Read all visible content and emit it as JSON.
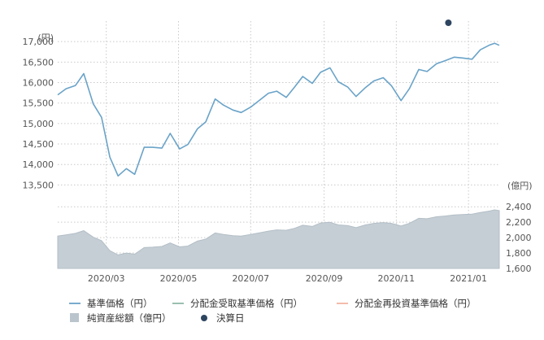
{
  "chart_data": {
    "type": "line",
    "upper": {
      "unit_label": "(円)",
      "ylim": [
        13250,
        17500
      ],
      "yticks": [
        13500,
        14000,
        14500,
        15000,
        15500,
        16000,
        16500,
        17000
      ],
      "ytick_labels": [
        "13,500",
        "14,000",
        "14,500",
        "15,000",
        "15,500",
        "16,000",
        "16,500",
        "17,000"
      ]
    },
    "lower": {
      "unit_label": "(億円)",
      "ylim": [
        1600,
        2550
      ],
      "yticks": [
        1600,
        1800,
        2000,
        2200,
        2400
      ],
      "ytick_labels": [
        "1,600",
        "1,800",
        "2,000",
        "2,200",
        "2,400"
      ]
    },
    "x_start": "2020-01-20",
    "x_end": "2021-01-27",
    "xticks": [
      "2020-03-01",
      "2020-05-01",
      "2020-07-01",
      "2020-09-01",
      "2020-11-01",
      "2021-01-01"
    ],
    "xtick_labels": [
      "2020/03",
      "2020/05",
      "2020/07",
      "2020/09",
      "2020/11",
      "2021/01"
    ],
    "nav_series": {
      "name": "基準価格（円）",
      "color": "#6aa3c8",
      "points": [
        [
          "2020-01-20",
          15700
        ],
        [
          "2020-01-27",
          15850
        ],
        [
          "2020-02-04",
          15930
        ],
        [
          "2020-02-11",
          16220
        ],
        [
          "2020-02-19",
          15480
        ],
        [
          "2020-02-26",
          15150
        ],
        [
          "2020-03-04",
          14180
        ],
        [
          "2020-03-11",
          13720
        ],
        [
          "2020-03-18",
          13900
        ],
        [
          "2020-03-25",
          13760
        ],
        [
          "2020-04-02",
          14420
        ],
        [
          "2020-04-09",
          14420
        ],
        [
          "2020-04-17",
          14400
        ],
        [
          "2020-04-24",
          14760
        ],
        [
          "2020-05-02",
          14380
        ],
        [
          "2020-05-09",
          14490
        ],
        [
          "2020-05-17",
          14870
        ],
        [
          "2020-05-24",
          15040
        ],
        [
          "2020-06-01",
          15600
        ],
        [
          "2020-06-08",
          15450
        ],
        [
          "2020-06-16",
          15330
        ],
        [
          "2020-06-23",
          15270
        ],
        [
          "2020-07-01",
          15400
        ],
        [
          "2020-07-08",
          15560
        ],
        [
          "2020-07-16",
          15740
        ],
        [
          "2020-07-23",
          15790
        ],
        [
          "2020-07-31",
          15640
        ],
        [
          "2020-08-07",
          15890
        ],
        [
          "2020-08-14",
          16150
        ],
        [
          "2020-08-22",
          15980
        ],
        [
          "2020-08-29",
          16250
        ],
        [
          "2020-09-06",
          16360
        ],
        [
          "2020-09-13",
          16020
        ],
        [
          "2020-09-21",
          15890
        ],
        [
          "2020-09-28",
          15660
        ],
        [
          "2020-10-06",
          15880
        ],
        [
          "2020-10-13",
          16040
        ],
        [
          "2020-10-21",
          16120
        ],
        [
          "2020-10-28",
          15920
        ],
        [
          "2020-11-05",
          15560
        ],
        [
          "2020-11-12",
          15850
        ],
        [
          "2020-11-20",
          16320
        ],
        [
          "2020-11-27",
          16270
        ],
        [
          "2020-12-05",
          16460
        ],
        [
          "2020-12-12",
          16530
        ],
        [
          "2020-12-20",
          16620
        ],
        [
          "2020-12-27",
          16600
        ],
        [
          "2021-01-04",
          16570
        ],
        [
          "2021-01-11",
          16800
        ],
        [
          "2021-01-19",
          16920
        ],
        [
          "2021-01-23",
          16960
        ],
        [
          "2021-01-27",
          16910
        ]
      ]
    },
    "net_assets_series": {
      "name": "純資産総額（億円）",
      "color": "#c5ced5",
      "points": [
        [
          "2020-01-20",
          2020
        ],
        [
          "2020-01-27",
          2035
        ],
        [
          "2020-02-04",
          2055
        ],
        [
          "2020-02-11",
          2090
        ],
        [
          "2020-02-19",
          2005
        ],
        [
          "2020-02-26",
          1960
        ],
        [
          "2020-03-04",
          1830
        ],
        [
          "2020-03-11",
          1775
        ],
        [
          "2020-03-18",
          1800
        ],
        [
          "2020-03-25",
          1785
        ],
        [
          "2020-04-02",
          1870
        ],
        [
          "2020-04-09",
          1875
        ],
        [
          "2020-04-17",
          1885
        ],
        [
          "2020-04-24",
          1930
        ],
        [
          "2020-05-02",
          1880
        ],
        [
          "2020-05-09",
          1890
        ],
        [
          "2020-05-17",
          1955
        ],
        [
          "2020-05-24",
          1980
        ],
        [
          "2020-06-01",
          2060
        ],
        [
          "2020-06-08",
          2040
        ],
        [
          "2020-06-16",
          2025
        ],
        [
          "2020-06-23",
          2020
        ],
        [
          "2020-07-01",
          2040
        ],
        [
          "2020-07-08",
          2060
        ],
        [
          "2020-07-16",
          2085
        ],
        [
          "2020-07-23",
          2100
        ],
        [
          "2020-07-31",
          2095
        ],
        [
          "2020-08-07",
          2120
        ],
        [
          "2020-08-14",
          2160
        ],
        [
          "2020-08-22",
          2145
        ],
        [
          "2020-08-29",
          2190
        ],
        [
          "2020-09-06",
          2200
        ],
        [
          "2020-09-13",
          2165
        ],
        [
          "2020-09-21",
          2155
        ],
        [
          "2020-09-28",
          2130
        ],
        [
          "2020-10-06",
          2165
        ],
        [
          "2020-10-13",
          2185
        ],
        [
          "2020-10-21",
          2195
        ],
        [
          "2020-10-28",
          2185
        ],
        [
          "2020-11-05",
          2150
        ],
        [
          "2020-11-12",
          2185
        ],
        [
          "2020-11-20",
          2250
        ],
        [
          "2020-11-27",
          2245
        ],
        [
          "2020-12-05",
          2270
        ],
        [
          "2020-12-12",
          2280
        ],
        [
          "2020-12-20",
          2295
        ],
        [
          "2020-12-27",
          2300
        ],
        [
          "2021-01-04",
          2305
        ],
        [
          "2021-01-11",
          2325
        ],
        [
          "2021-01-19",
          2345
        ],
        [
          "2021-01-23",
          2360
        ],
        [
          "2021-01-27",
          2350
        ]
      ]
    },
    "settlement_dates": [
      {
        "date": "2020-12-15",
        "position": "top"
      }
    ],
    "grid": true,
    "legend_position": "bottom",
    "legend": [
      {
        "label": "基準価格（円）",
        "swatch": "line",
        "color": "#6aa3c8"
      },
      {
        "label": "分配金受取基準価格（円）",
        "swatch": "line",
        "color": "#8fb8a8"
      },
      {
        "label": "分配金再投資基準価格（円）",
        "swatch": "line",
        "color": "#f0b4a0"
      },
      {
        "label": "純資産総額（億円）",
        "swatch": "box",
        "color": "#b9c4cc"
      },
      {
        "label": "決算日",
        "swatch": "dot",
        "color": "#2e4560"
      }
    ]
  }
}
